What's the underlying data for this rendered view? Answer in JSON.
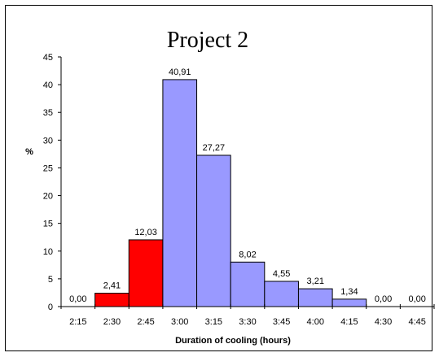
{
  "chart_data": {
    "type": "bar",
    "title": "Project 2",
    "xlabel": "Duration of cooling (hours)",
    "ylabel": "%",
    "ylim": [
      0,
      45
    ],
    "yticks": [
      0,
      5,
      10,
      15,
      20,
      25,
      30,
      35,
      40,
      45
    ],
    "categories": [
      "2:15",
      "2:30",
      "2:45",
      "3:00",
      "3:15",
      "3:30",
      "3:45",
      "4:00",
      "4:15",
      "4:30",
      "4:45"
    ],
    "values": [
      0.0,
      2.41,
      12.03,
      40.91,
      27.27,
      8.02,
      4.55,
      3.21,
      1.34,
      0.0,
      0.0
    ],
    "data_labels": [
      "0,00",
      "2,41",
      "12,03",
      "40,91",
      "27,27",
      "8,02",
      "4,55",
      "3,21",
      "1,34",
      "0,00",
      "0,00"
    ],
    "bar_colors": [
      "#ff0000",
      "#ff0000",
      "#ff0000",
      "#9999ff",
      "#9999ff",
      "#9999ff",
      "#9999ff",
      "#9999ff",
      "#9999ff",
      "#9999ff",
      "#9999ff"
    ],
    "grid": false,
    "legend": "none"
  }
}
